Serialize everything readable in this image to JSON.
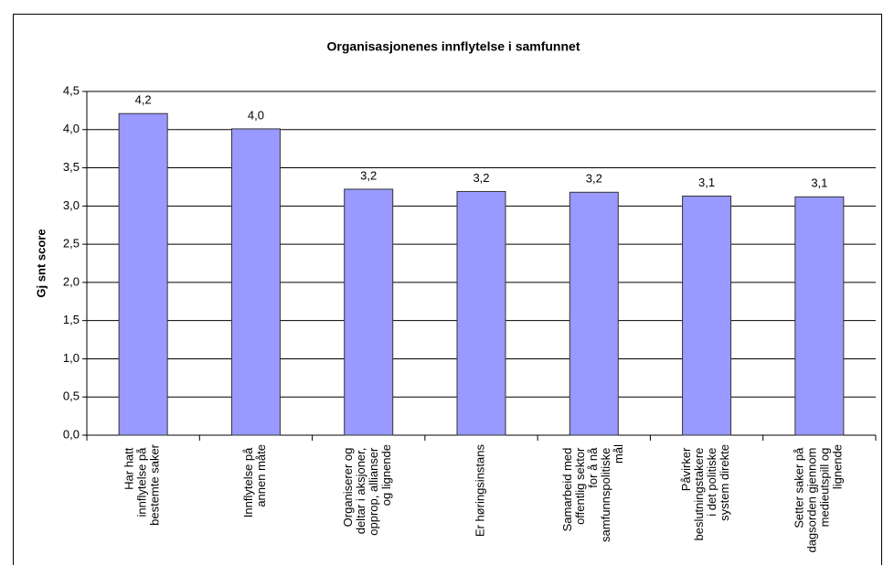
{
  "chart_data": {
    "type": "bar",
    "title": "Organisasjonenes innflytelse i samfunnet",
    "y_label": "Gj snt score",
    "categories": [
      "Har hatt innflytelse på bestemte saker",
      "Innflytelse på annen måte",
      "Organiserer og deltar i aksjoner, opprop, allianser og lignende",
      "Er høringsinstans",
      "Samarbeid med offentlig sektor for å nå samfunnspolitiske mål",
      "Påvirker beslutningstakere i det politiske system direkte",
      "Setter saker på dagsorden gjennom medieutspill og lignende"
    ],
    "values": [
      4.21,
      4.01,
      3.22,
      3.19,
      3.18,
      3.13,
      3.12
    ],
    "value_labels": [
      "4,2",
      "4,0",
      "3,2",
      "3,2",
      "3,2",
      "3,1",
      "3,1"
    ],
    "color": "#9999ff",
    "ylim": [
      0,
      4.5
    ],
    "yticks": [
      {
        "value": 0,
        "label": "0,0"
      },
      {
        "value": 0.5,
        "label": "0,5"
      },
      {
        "value": 1,
        "label": "1,0"
      },
      {
        "value": 1.5,
        "label": "1,5"
      },
      {
        "value": 2,
        "label": "2,0"
      },
      {
        "value": 2.5,
        "label": "2,5"
      },
      {
        "value": 3,
        "label": "3,0"
      },
      {
        "value": 3.5,
        "label": "3,5"
      },
      {
        "value": 4,
        "label": "4,0"
      },
      {
        "value": 4.5,
        "label": "4,5"
      }
    ],
    "grid": true
  }
}
